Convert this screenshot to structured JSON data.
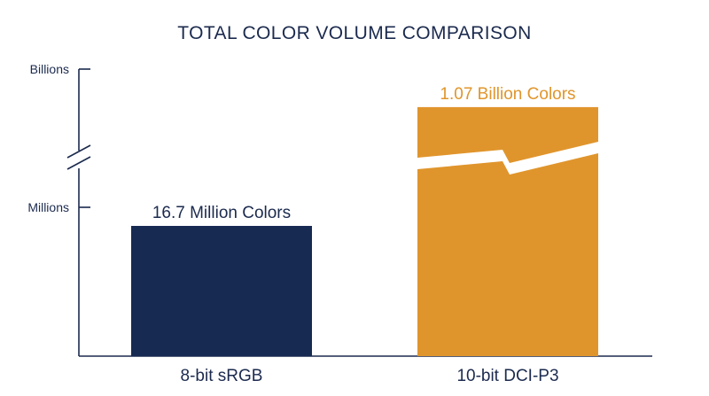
{
  "chart_data": {
    "type": "bar",
    "title": "TOTAL COLOR VOLUME COMPARISON",
    "xlabel": "",
    "ylabel": "",
    "y_scale": "broken",
    "y_tick_labels": [
      "Billions",
      "Millions"
    ],
    "categories": [
      "8-bit sRGB",
      "10-bit DCI-P3"
    ],
    "values": [
      16700000,
      1070000000
    ],
    "data_labels": [
      "16.7 Million Colors",
      "1.07 Billion Colors"
    ],
    "bar_colors": [
      "#162A52",
      "#E0952C"
    ],
    "grid": false,
    "legend": "none"
  },
  "colors": {
    "text_primary": "#1B2A4E",
    "axis": "#1B2A4E",
    "accent": "#E0952C"
  }
}
